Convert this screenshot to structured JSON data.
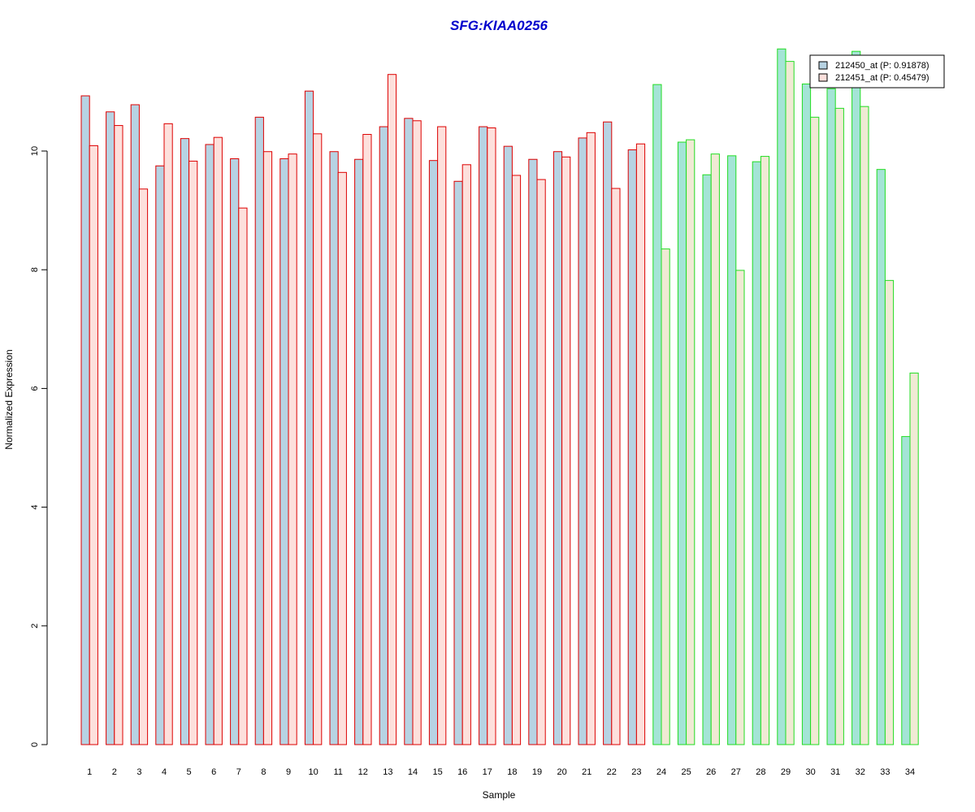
{
  "chart_data": {
    "type": "bar",
    "title": "SFG:KIAA0256",
    "xlabel": "Sample",
    "ylabel": "Normalized Expression",
    "ylim": [
      0,
      11.8
    ],
    "yticks": [
      0,
      2,
      4,
      6,
      8,
      10
    ],
    "grid": false,
    "legend_position": "top-right",
    "categories": [
      "1",
      "2",
      "3",
      "4",
      "5",
      "6",
      "7",
      "8",
      "9",
      "10",
      "11",
      "12",
      "13",
      "14",
      "15",
      "16",
      "17",
      "18",
      "19",
      "20",
      "21",
      "22",
      "23",
      "24",
      "25",
      "26",
      "27",
      "28",
      "29",
      "30",
      "31",
      "32",
      "33",
      "34"
    ],
    "groups": [
      {
        "from": 1,
        "to": 23,
        "border_color": "#dd0000"
      },
      {
        "from": 24,
        "to": 34,
        "border_color": "#22dd22"
      }
    ],
    "series": [
      {
        "name": "212450_at (P: 0.91878)",
        "fill_group1": "#b7d3e3",
        "fill_group2": "#a4e4d6",
        "values": [
          10.93,
          10.66,
          10.78,
          9.75,
          10.21,
          10.11,
          9.87,
          10.57,
          9.87,
          11.01,
          9.99,
          9.86,
          10.41,
          10.55,
          9.84,
          9.49,
          10.41,
          10.08,
          9.86,
          9.99,
          10.22,
          10.49,
          10.02,
          11.12,
          10.15,
          9.6,
          9.92,
          9.82,
          11.72,
          11.13,
          11.05,
          11.68,
          9.69,
          5.19
        ]
      },
      {
        "name": "212451_at (P: 0.45479)",
        "fill_group1": "#fde0dc",
        "fill_group2": "#f0ead4",
        "values": [
          10.09,
          10.43,
          9.36,
          10.46,
          9.83,
          10.23,
          9.04,
          9.99,
          9.95,
          10.29,
          9.64,
          10.28,
          11.29,
          10.51,
          10.41,
          9.77,
          10.39,
          9.59,
          9.52,
          9.9,
          10.31,
          9.37,
          10.12,
          8.35,
          10.19,
          9.95,
          7.99,
          9.91,
          11.51,
          10.57,
          10.72,
          10.75,
          7.82,
          6.26
        ]
      }
    ]
  }
}
